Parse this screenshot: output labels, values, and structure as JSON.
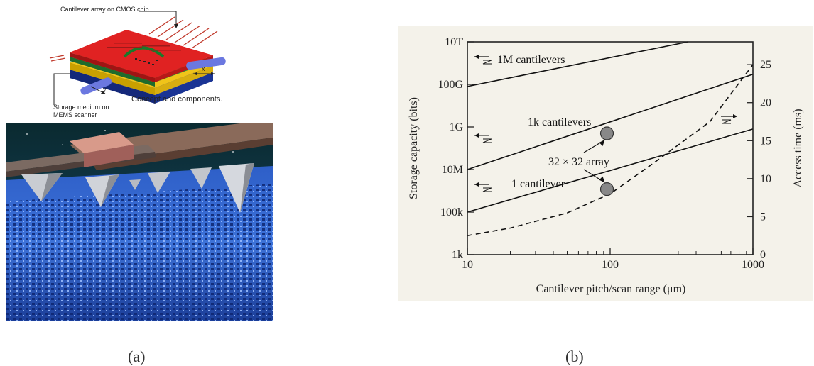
{
  "panel_a": {
    "diagram_top_label": "Cantilever array on CMOS chip",
    "diagram_bottom_label_line1": "Storage medium on",
    "diagram_bottom_label_line2": "MEMS scanner",
    "axis_x": "x",
    "axis_y": "y",
    "concept_caption": "Concept and components."
  },
  "captions": {
    "a": "(a)",
    "b": "(b)"
  },
  "chart_data": {
    "type": "line",
    "xlabel": "Cantilever pitch/scan range  (μm)",
    "ylabel_left": "Storage capacity  (bits)",
    "ylabel_right": "Access time  (ms)",
    "x_scale": "log",
    "y_left_scale": "log",
    "xlim": [
      10,
      1000
    ],
    "ylim_left": [
      1000,
      10000000000000
    ],
    "ylim_right": [
      0,
      28
    ],
    "x_ticks": [
      {
        "value": 10,
        "label": "10"
      },
      {
        "value": 100,
        "label": "100"
      },
      {
        "value": 1000,
        "label": "1000"
      }
    ],
    "y_left_ticks": [
      {
        "value": 1000,
        "label": "1k"
      },
      {
        "value": 100000,
        "label": "100k"
      },
      {
        "value": 10000000,
        "label": "10M"
      },
      {
        "value": 1000000000,
        "label": "1G"
      },
      {
        "value": 100000000000,
        "label": "100G"
      },
      {
        "value": 10000000000000,
        "label": "10T"
      }
    ],
    "y_right_ticks": [
      0,
      5,
      10,
      15,
      20,
      25
    ],
    "series": [
      {
        "name": "1M cantilevers",
        "axis": "left",
        "style": "solid",
        "x": [
          10,
          350
        ],
        "y": [
          80000000000,
          10000000000000
        ]
      },
      {
        "name": "1k cantilevers",
        "axis": "left",
        "style": "solid",
        "x": [
          10,
          1000
        ],
        "y": [
          10000000,
          300000000000
        ]
      },
      {
        "name": "1 cantilever",
        "axis": "left",
        "style": "solid",
        "x": [
          10,
          1000
        ],
        "y": [
          100000,
          800000000
        ]
      },
      {
        "axis": "right",
        "style": "dashed",
        "x": [
          10,
          20,
          50,
          100,
          200,
          500,
          1000
        ],
        "y": [
          2.5,
          3.5,
          5.5,
          8,
          12,
          17.5,
          25
        ]
      }
    ],
    "markers": [
      {
        "x": 95,
        "y": 500000000
      },
      {
        "x": 95,
        "y": 1200000
      }
    ],
    "annotation": "32 × 32 array"
  }
}
